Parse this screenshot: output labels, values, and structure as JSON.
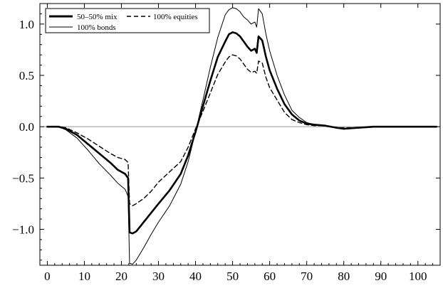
{
  "chart_data": {
    "type": "line",
    "title": "",
    "xlabel": "",
    "ylabel": "",
    "xlim": [
      -2,
      106
    ],
    "ylim": [
      -1.35,
      1.2
    ],
    "x_ticks": [
      0,
      10,
      20,
      30,
      40,
      50,
      60,
      70,
      80,
      90,
      100
    ],
    "x_tick_labels": [
      "0",
      "10",
      "20",
      "30",
      "40",
      "50",
      "60",
      "70",
      "80",
      "90",
      "100"
    ],
    "y_ticks": [
      1.0,
      0.5,
      0.0,
      -0.5,
      -1.0
    ],
    "y_tick_labels": [
      "1.0",
      "0.5",
      "0.0",
      "−0.5",
      "−1.0"
    ],
    "zero_line": true,
    "grid": false,
    "legend_position": "top-left",
    "legend": {
      "row1_left": "50–50% mix",
      "row1_right": "100% equities",
      "row2_left": "100% bonds"
    },
    "series": [
      {
        "name": "50–50% mix",
        "style": "thick-solid",
        "color": "#000000",
        "points": [
          [
            0,
            0
          ],
          [
            3,
            0
          ],
          [
            5,
            -0.02
          ],
          [
            8,
            -0.08
          ],
          [
            11,
            -0.17
          ],
          [
            14,
            -0.26
          ],
          [
            17,
            -0.35
          ],
          [
            19,
            -0.42
          ],
          [
            21,
            -0.46
          ],
          [
            21.8,
            -0.5
          ],
          [
            22.2,
            -1.03
          ],
          [
            23,
            -1.04
          ],
          [
            24,
            -1.02
          ],
          [
            26,
            -0.93
          ],
          [
            28,
            -0.84
          ],
          [
            30,
            -0.75
          ],
          [
            33,
            -0.62
          ],
          [
            36,
            -0.46
          ],
          [
            38,
            -0.28
          ],
          [
            40,
            -0.05
          ],
          [
            42,
            0.2
          ],
          [
            44,
            0.45
          ],
          [
            46,
            0.68
          ],
          [
            48,
            0.83
          ],
          [
            49,
            0.9
          ],
          [
            50,
            0.92
          ],
          [
            51,
            0.91
          ],
          [
            52,
            0.88
          ],
          [
            53,
            0.83
          ],
          [
            54,
            0.78
          ],
          [
            55,
            0.74
          ],
          [
            56,
            0.76
          ],
          [
            56.5,
            0.72
          ],
          [
            57,
            0.88
          ],
          [
            58,
            0.84
          ],
          [
            59,
            0.68
          ],
          [
            60,
            0.55
          ],
          [
            62,
            0.37
          ],
          [
            64,
            0.22
          ],
          [
            66,
            0.12
          ],
          [
            68,
            0.06
          ],
          [
            70,
            0.03
          ],
          [
            72,
            0.02
          ],
          [
            75,
            0.01
          ],
          [
            78,
            -0.01
          ],
          [
            80,
            -0.02
          ],
          [
            84,
            -0.01
          ],
          [
            88,
            0
          ],
          [
            95,
            0
          ],
          [
            105,
            0
          ]
        ]
      },
      {
        "name": "100% equities",
        "style": "dashed",
        "color": "#000000",
        "points": [
          [
            0,
            0
          ],
          [
            3,
            0
          ],
          [
            5,
            -0.01
          ],
          [
            8,
            -0.06
          ],
          [
            11,
            -0.12
          ],
          [
            14,
            -0.19
          ],
          [
            17,
            -0.26
          ],
          [
            19,
            -0.3
          ],
          [
            21,
            -0.32
          ],
          [
            21.8,
            -0.35
          ],
          [
            22.2,
            -0.75
          ],
          [
            23,
            -0.77
          ],
          [
            24,
            -0.75
          ],
          [
            26,
            -0.7
          ],
          [
            28,
            -0.63
          ],
          [
            30,
            -0.54
          ],
          [
            33,
            -0.44
          ],
          [
            36,
            -0.34
          ],
          [
            38,
            -0.2
          ],
          [
            40,
            -0.02
          ],
          [
            42,
            0.15
          ],
          [
            44,
            0.33
          ],
          [
            46,
            0.51
          ],
          [
            48,
            0.63
          ],
          [
            49,
            0.68
          ],
          [
            50,
            0.7
          ],
          [
            51,
            0.69
          ],
          [
            52,
            0.66
          ],
          [
            53,
            0.61
          ],
          [
            54,
            0.56
          ],
          [
            55,
            0.53
          ],
          [
            56,
            0.54
          ],
          [
            56.5,
            0.52
          ],
          [
            57,
            0.64
          ],
          [
            58,
            0.62
          ],
          [
            59,
            0.48
          ],
          [
            60,
            0.38
          ],
          [
            62,
            0.26
          ],
          [
            64,
            0.14
          ],
          [
            66,
            0.07
          ],
          [
            68,
            0.04
          ],
          [
            70,
            0.02
          ],
          [
            72,
            0.01
          ],
          [
            75,
            0.01
          ],
          [
            78,
            -0.01
          ],
          [
            80,
            -0.01
          ],
          [
            84,
            -0.01
          ],
          [
            88,
            0
          ],
          [
            95,
            0
          ],
          [
            105,
            0
          ]
        ]
      },
      {
        "name": "100% bonds",
        "style": "thin-solid",
        "color": "#000000",
        "points": [
          [
            0,
            0
          ],
          [
            3,
            0
          ],
          [
            5,
            -0.03
          ],
          [
            8,
            -0.11
          ],
          [
            11,
            -0.23
          ],
          [
            14,
            -0.36
          ],
          [
            17,
            -0.47
          ],
          [
            19,
            -0.55
          ],
          [
            21,
            -0.61
          ],
          [
            21.8,
            -0.68
          ],
          [
            22.2,
            -1.33
          ],
          [
            23,
            -1.34
          ],
          [
            24,
            -1.3
          ],
          [
            26,
            -1.18
          ],
          [
            28,
            -1.05
          ],
          [
            30,
            -0.93
          ],
          [
            33,
            -0.77
          ],
          [
            36,
            -0.56
          ],
          [
            38,
            -0.34
          ],
          [
            40,
            -0.05
          ],
          [
            42,
            0.26
          ],
          [
            44,
            0.58
          ],
          [
            46,
            0.87
          ],
          [
            48,
            1.09
          ],
          [
            49,
            1.14
          ],
          [
            50,
            1.16
          ],
          [
            51,
            1.15
          ],
          [
            52,
            1.12
          ],
          [
            53,
            1.07
          ],
          [
            54,
            1.04
          ],
          [
            55,
            1.0
          ],
          [
            56,
            1.02
          ],
          [
            56.5,
            0.97
          ],
          [
            57,
            1.15
          ],
          [
            58,
            1.1
          ],
          [
            59,
            0.9
          ],
          [
            60,
            0.74
          ],
          [
            62,
            0.5
          ],
          [
            64,
            0.31
          ],
          [
            66,
            0.16
          ],
          [
            68,
            0.09
          ],
          [
            70,
            0.04
          ],
          [
            72,
            0.02
          ],
          [
            75,
            0.01
          ],
          [
            78,
            -0.01
          ],
          [
            80,
            -0.02
          ],
          [
            84,
            -0.01
          ],
          [
            88,
            0
          ],
          [
            95,
            0
          ],
          [
            105,
            0
          ]
        ]
      }
    ]
  }
}
